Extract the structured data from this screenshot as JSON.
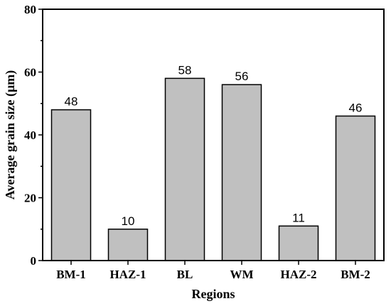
{
  "chart_data": {
    "type": "bar",
    "title": "",
    "xlabel": "Regions",
    "ylabel": "Average grain size (μm)",
    "categories": [
      "BM-1",
      "HAZ-1",
      "BL",
      "WM",
      "HAZ-2",
      "BM-2"
    ],
    "values": [
      48,
      10,
      58,
      56,
      11,
      46
    ],
    "data_labels": [
      "48",
      "10",
      "58",
      "56",
      "11",
      "46"
    ],
    "ylim": [
      0,
      80
    ],
    "yticks": [
      0,
      20,
      40,
      60,
      80
    ],
    "grid": false,
    "legend": "none",
    "bar_color": "#c0c0c0",
    "bar_edge_color": "#000000"
  }
}
